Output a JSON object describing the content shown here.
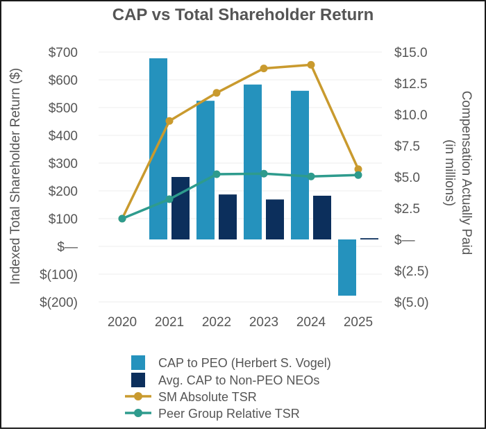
{
  "chart_data": {
    "type": "bar+line",
    "title": "CAP vs Total Shareholder Return",
    "categories": [
      "2020",
      "2021",
      "2022",
      "2023",
      "2024",
      "2025"
    ],
    "y_left": {
      "label": "Indexed Total Shareholder Return ($)",
      "range": [
        -200,
        700
      ],
      "ticks": [
        700,
        600,
        500,
        400,
        300,
        200,
        100,
        0,
        -100,
        -200
      ],
      "tick_labels": [
        "$700",
        "$600",
        "$500",
        "$400",
        "$300",
        "$200",
        "$100",
        "$—",
        "$(100)",
        "$(200)"
      ]
    },
    "y_right": {
      "label_line1": "Compensation Actually Paid",
      "label_line2": "(in millions)",
      "range": [
        -5,
        15
      ],
      "ticks": [
        15,
        12.5,
        10,
        7.5,
        5,
        2.5,
        0,
        -2.5,
        -5
      ],
      "tick_labels": [
        "$15.0",
        "$12.5",
        "$10.0",
        "$7.5",
        "$5.0",
        "$2.5",
        "$—",
        "$(2.5)",
        "$(5.0)"
      ]
    },
    "bar_series": [
      {
        "name": "CAP to PEO (Herbert S. Vogel)",
        "color": "#2592bd",
        "axis": "right",
        "values": [
          null,
          14.5,
          11.1,
          12.4,
          11.9,
          -4.5
        ]
      },
      {
        "name": "Avg. CAP to Non-PEO NEOs",
        "color": "#0c2f5c",
        "axis": "right",
        "values": [
          null,
          5.0,
          3.6,
          3.2,
          3.5,
          0.1
        ]
      }
    ],
    "line_series": [
      {
        "name": "SM Absolute TSR",
        "color": "#c99a2e",
        "axis": "left",
        "values": [
          100,
          452,
          553,
          641,
          654,
          278
        ]
      },
      {
        "name": "Peer Group Relative TSR",
        "color": "#2e9b8d",
        "axis": "left",
        "values": [
          100,
          170,
          260,
          262,
          252,
          257
        ]
      }
    ],
    "legend_position": "bottom",
    "grid": "horizontal"
  }
}
